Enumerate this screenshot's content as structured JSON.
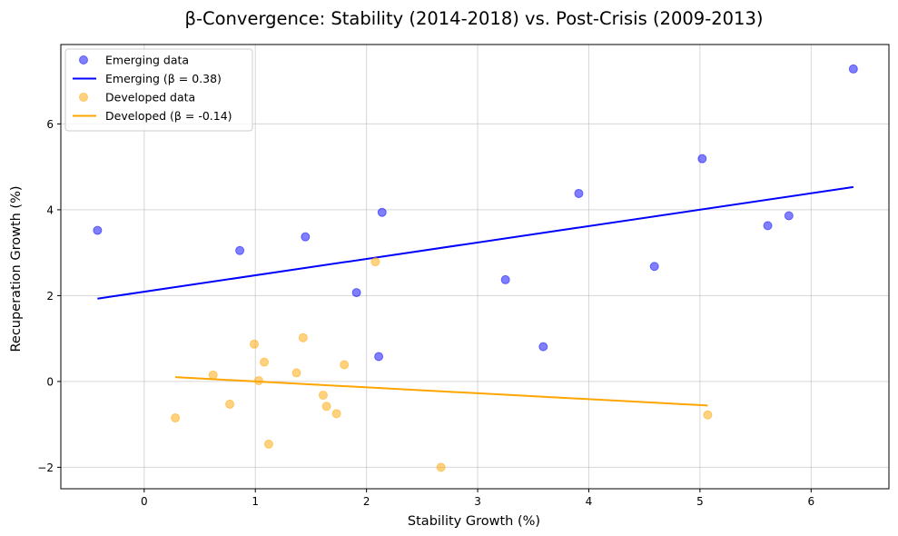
{
  "chart_data": {
    "type": "scatter",
    "title": "β-Convergence: Stability (2014-2018) vs. Post-Crisis (2009-2013)",
    "xlabel": "Stability Growth (%)",
    "ylabel": "Recuperation Growth (%)",
    "xlim": [
      -0.75,
      6.7
    ],
    "ylim": [
      -2.5,
      7.85
    ],
    "xticks": [
      0,
      1,
      2,
      3,
      4,
      5,
      6
    ],
    "yticks": [
      -2,
      0,
      2,
      4,
      6
    ],
    "xtick_labels": [
      "0",
      "1",
      "2",
      "3",
      "4",
      "5",
      "6"
    ],
    "ytick_labels": [
      "−2",
      "0",
      "2",
      "4",
      "6"
    ],
    "grid": true,
    "legend_position": "top-left",
    "series": [
      {
        "name": "Emerging data",
        "kind": "scatter",
        "color": "#0000ff",
        "x": [
          -0.42,
          0.86,
          1.45,
          1.91,
          2.14,
          2.11,
          3.25,
          3.59,
          3.91,
          4.59,
          5.02,
          5.61,
          5.8,
          6.38
        ],
        "y": [
          3.52,
          3.05,
          3.37,
          2.07,
          3.94,
          0.58,
          2.37,
          0.81,
          4.38,
          2.68,
          5.19,
          3.63,
          3.86,
          7.28
        ]
      },
      {
        "name": "Emerging (β = 0.38)",
        "kind": "line",
        "color": "#0000ff",
        "x": [
          -0.42,
          6.38
        ],
        "y": [
          1.93,
          4.53
        ]
      },
      {
        "name": "Developed data",
        "kind": "scatter",
        "color": "#ffa500",
        "x": [
          0.28,
          0.62,
          0.77,
          0.99,
          1.03,
          1.08,
          1.12,
          1.37,
          1.43,
          1.61,
          1.64,
          1.73,
          1.8,
          2.08,
          2.67,
          5.07
        ],
        "y": [
          -0.85,
          0.15,
          -0.53,
          0.87,
          0.02,
          0.45,
          -1.46,
          0.2,
          1.02,
          -0.32,
          -0.58,
          -0.75,
          0.39,
          2.79,
          -2.0,
          -0.78
        ]
      },
      {
        "name": "Developed (β = -0.14)",
        "kind": "line",
        "color": "#ffa500",
        "x": [
          0.28,
          5.07
        ],
        "y": [
          0.1,
          -0.56
        ]
      }
    ]
  }
}
